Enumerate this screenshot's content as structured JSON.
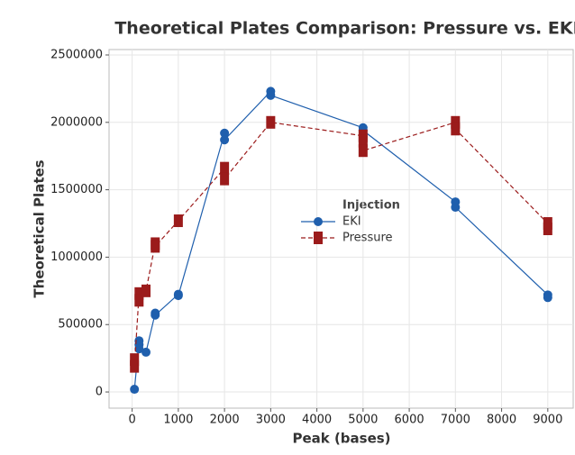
{
  "chart_data": {
    "type": "line",
    "title": "Theoretical Plates Comparison: Pressure vs. EKI",
    "x_label": "Peak (bases)",
    "y_label": "Theoretical Plates",
    "legend_title": "Injection",
    "xlim": [
      -500,
      9550
    ],
    "ylim": [
      -120000,
      2540000
    ],
    "xticks": [
      0,
      1000,
      2000,
      3000,
      4000,
      5000,
      6000,
      7000,
      8000,
      9000
    ],
    "yticks": [
      0,
      500000,
      1000000,
      1500000,
      2000000,
      2500000
    ],
    "grid": true,
    "series": [
      {
        "name": "EKI",
        "color": "#1f5fad",
        "marker": "circle",
        "dash": false,
        "x": [
          50,
          150,
          150,
          150,
          300,
          500,
          500,
          1000,
          1000,
          2000,
          2000,
          3000,
          3000,
          5000,
          5000,
          7000,
          7000,
          9000,
          9000
        ],
        "values": [
          20000,
          380000,
          350000,
          320000,
          295000,
          585000,
          570000,
          725000,
          715000,
          1920000,
          1870000,
          2230000,
          2200000,
          1960000,
          1940000,
          1410000,
          1370000,
          720000,
          700000
        ]
      },
      {
        "name": "Pressure",
        "color": "#9b1b1b",
        "marker": "square",
        "dash": true,
        "x": [
          50,
          50,
          150,
          150,
          300,
          500,
          500,
          1000,
          2000,
          2000,
          3000,
          5000,
          5000,
          5000,
          7000,
          7000,
          9000,
          9000
        ],
        "values": [
          240000,
          190000,
          730000,
          680000,
          750000,
          1100000,
          1080000,
          1270000,
          1660000,
          1580000,
          2000000,
          1900000,
          1860000,
          1790000,
          2000000,
          1950000,
          1250000,
          1210000
        ]
      }
    ]
  }
}
